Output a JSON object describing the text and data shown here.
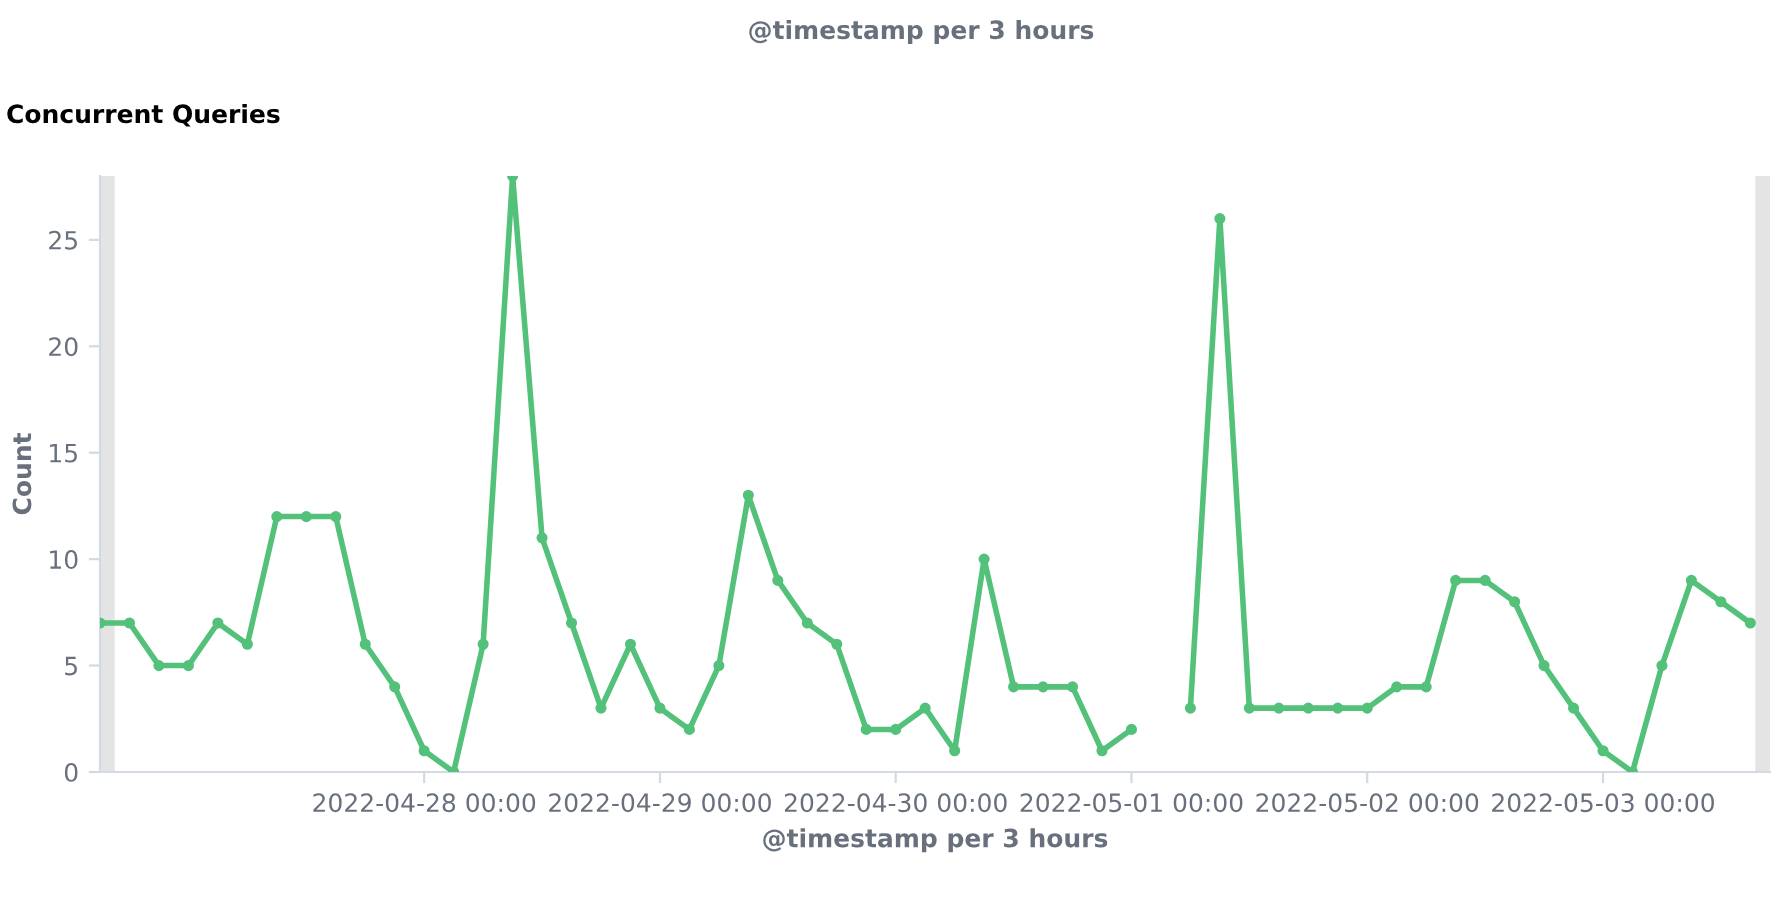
{
  "chart_data": {
    "type": "line",
    "title": "Concurrent Queries",
    "xlabel": "@timestamp per 3 hours",
    "ylabel": "Count",
    "annotations": [
      "@timestamp per 3 hours"
    ],
    "x": [
      "2022-04-26T15:00",
      "2022-04-26T18:00",
      "2022-04-26T21:00",
      "2022-04-27T00:00",
      "2022-04-27T03:00",
      "2022-04-27T06:00",
      "2022-04-27T09:00",
      "2022-04-27T12:00",
      "2022-04-27T15:00",
      "2022-04-27T18:00",
      "2022-04-27T21:00",
      "2022-04-28T00:00",
      "2022-04-28T03:00",
      "2022-04-28T06:00",
      "2022-04-28T09:00",
      "2022-04-28T12:00",
      "2022-04-28T15:00",
      "2022-04-28T18:00",
      "2022-04-28T21:00",
      "2022-04-29T00:00",
      "2022-04-29T03:00",
      "2022-04-29T06:00",
      "2022-04-29T09:00",
      "2022-04-29T12:00",
      "2022-04-29T15:00",
      "2022-04-29T18:00",
      "2022-04-29T21:00",
      "2022-04-30T00:00",
      "2022-04-30T03:00",
      "2022-04-30T06:00",
      "2022-04-30T09:00",
      "2022-04-30T12:00",
      "2022-04-30T15:00",
      "2022-04-30T18:00",
      "2022-04-30T21:00",
      "2022-05-01T00:00",
      "2022-05-01T03:00",
      "2022-05-01T06:00",
      "2022-05-01T09:00",
      "2022-05-01T12:00",
      "2022-05-01T15:00",
      "2022-05-01T18:00",
      "2022-05-01T21:00",
      "2022-05-02T00:00",
      "2022-05-02T03:00",
      "2022-05-02T06:00",
      "2022-05-02T09:00",
      "2022-05-02T12:00",
      "2022-05-02T15:00",
      "2022-05-02T18:00",
      "2022-05-02T21:00",
      "2022-05-03T00:00",
      "2022-05-03T03:00",
      "2022-05-03T06:00",
      "2022-05-03T09:00",
      "2022-05-03T12:00",
      "2022-05-03T15:00"
    ],
    "series": [
      {
        "color": "#54c17a",
        "values": [
          7,
          7,
          5,
          5,
          7,
          6,
          12,
          12,
          12,
          6,
          4,
          1,
          0,
          6,
          28,
          11,
          7,
          3,
          6,
          3,
          2,
          5,
          13,
          9,
          7,
          6,
          2,
          2,
          3,
          1,
          10,
          4,
          4,
          4,
          1,
          2,
          null,
          3,
          26,
          3,
          3,
          3,
          3,
          3,
          4,
          4,
          9,
          9,
          8,
          5,
          3,
          1,
          0,
          5,
          9,
          8,
          7
        ]
      }
    ],
    "marker": "circle",
    "line_style": "solid",
    "grid": false,
    "legend": false,
    "xlim": [
      "2022-04-26T15:00",
      "2022-05-03T17:00"
    ],
    "ylim": [
      0,
      28
    ],
    "yticks": [
      0,
      5,
      10,
      15,
      20,
      25
    ],
    "xticks": [
      {
        "value": "2022-04-28T00:00",
        "label": "2022-04-28 00:00"
      },
      {
        "value": "2022-04-29T00:00",
        "label": "2022-04-29 00:00"
      },
      {
        "value": "2022-04-30T00:00",
        "label": "2022-04-30 00:00"
      },
      {
        "value": "2022-05-01T00:00",
        "label": "2022-05-01 00:00"
      },
      {
        "value": "2022-05-02T00:00",
        "label": "2022-05-02 00:00"
      },
      {
        "value": "2022-05-03T00:00",
        "label": "2022-05-03 00:00"
      }
    ],
    "bands": [
      {
        "axis": "x",
        "from": "2022-04-26T15:00",
        "to": "2022-04-26T16:30",
        "color": "#e4e4e4"
      },
      {
        "axis": "x",
        "from": "2022-05-03T15:30",
        "to": "2022-05-03T17:00",
        "color": "#e4e4e4"
      }
    ]
  }
}
